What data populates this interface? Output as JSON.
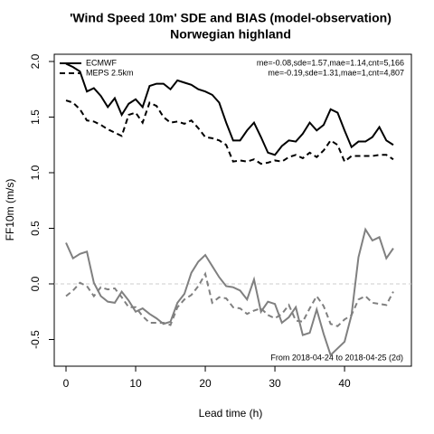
{
  "chart_data": {
    "type": "line",
    "title": "'Wind Speed 10m' SDE and BIAS (model-observation)",
    "subtitle": "Norwegian highland",
    "x_label": "Lead time (h)",
    "y_label": "FF10m (m/s)",
    "annotation": "From 2018-04-24 to 2018-04-25 (2d)",
    "x": [
      0,
      1,
      2,
      3,
      4,
      5,
      6,
      7,
      8,
      9,
      10,
      11,
      12,
      13,
      14,
      15,
      16,
      17,
      18,
      19,
      20,
      21,
      22,
      23,
      24,
      25,
      26,
      27,
      28,
      29,
      30,
      31,
      32,
      33,
      34,
      35,
      36,
      37,
      38,
      39,
      40,
      41,
      42,
      43,
      44,
      45,
      46,
      47
    ],
    "series": [
      {
        "name": "ECMWF",
        "color": "#000000",
        "bias_color": "#808080",
        "linestyle": "solid",
        "stats": "me=-0.08,sde=1.57,mae=1.14,cnt=5,166",
        "sde": [
          1.98,
          1.95,
          1.91,
          1.73,
          1.76,
          1.69,
          1.59,
          1.67,
          1.52,
          1.62,
          1.66,
          1.59,
          1.78,
          1.8,
          1.8,
          1.75,
          1.83,
          1.81,
          1.79,
          1.75,
          1.73,
          1.7,
          1.63,
          1.45,
          1.29,
          1.29,
          1.38,
          1.45,
          1.32,
          1.18,
          1.16,
          1.24,
          1.29,
          1.28,
          1.35,
          1.45,
          1.38,
          1.43,
          1.57,
          1.54,
          1.38,
          1.23,
          1.28,
          1.28,
          1.32,
          1.41,
          1.29,
          1.25
        ],
        "bias": [
          0.37,
          0.23,
          0.27,
          0.29,
          0.01,
          -0.11,
          -0.16,
          -0.17,
          -0.07,
          -0.15,
          -0.25,
          -0.22,
          -0.27,
          -0.31,
          -0.36,
          -0.34,
          -0.17,
          -0.09,
          0.1,
          0.2,
          0.26,
          0.16,
          0.06,
          -0.02,
          -0.03,
          -0.06,
          -0.14,
          0.04,
          -0.25,
          -0.16,
          -0.18,
          -0.35,
          -0.3,
          -0.21,
          -0.46,
          -0.44,
          -0.23,
          -0.45,
          -0.64,
          -0.58,
          -0.52,
          -0.28,
          0.24,
          0.49,
          0.39,
          0.42,
          0.23,
          0.32
        ]
      },
      {
        "name": "MEPS 2.5km",
        "color": "#000000",
        "bias_color": "#808080",
        "linestyle": "dashed",
        "stats": "me=-0.19,sde=1.31,mae=1,cnt=4,807",
        "sde": [
          1.65,
          1.63,
          1.57,
          1.47,
          1.46,
          1.43,
          1.39,
          1.36,
          1.33,
          1.52,
          1.54,
          1.45,
          1.63,
          1.6,
          1.5,
          1.45,
          1.46,
          1.44,
          1.47,
          1.4,
          1.32,
          1.31,
          1.29,
          1.25,
          1.1,
          1.11,
          1.1,
          1.12,
          1.08,
          1.09,
          1.11,
          1.1,
          1.14,
          1.16,
          1.13,
          1.18,
          1.14,
          1.2,
          1.29,
          1.25,
          1.1,
          1.15,
          1.15,
          1.15,
          1.15,
          1.16,
          1.16,
          1.12
        ],
        "bias": [
          -0.11,
          -0.06,
          0.01,
          -0.02,
          -0.11,
          -0.03,
          -0.05,
          -0.04,
          -0.12,
          -0.21,
          -0.21,
          -0.29,
          -0.35,
          -0.35,
          -0.35,
          -0.37,
          -0.21,
          -0.14,
          -0.1,
          -0.02,
          0.09,
          -0.17,
          -0.12,
          -0.13,
          -0.21,
          -0.22,
          -0.27,
          -0.24,
          -0.22,
          -0.28,
          -0.31,
          -0.27,
          -0.19,
          -0.33,
          -0.34,
          -0.22,
          -0.11,
          -0.2,
          -0.36,
          -0.38,
          -0.32,
          -0.28,
          -0.14,
          -0.11,
          -0.17,
          -0.18,
          -0.19,
          -0.07
        ]
      }
    ],
    "reference_line": 0,
    "reference_color": "#cccccc",
    "xlim": [
      -1.69,
      49.6
    ],
    "ylim": [
      -0.74,
      2.065
    ],
    "xticks": [
      0,
      10,
      20,
      30,
      40
    ],
    "yticks": [
      {
        "value": -0.5,
        "label": "-0.5"
      },
      {
        "value": 0,
        "label": "0.0"
      },
      {
        "value": 0.5,
        "label": "0.5"
      },
      {
        "value": 1,
        "label": "1.0"
      },
      {
        "value": 1.5,
        "label": "1.5"
      },
      {
        "value": 2,
        "label": "2.0"
      }
    ],
    "legend": "top-left"
  }
}
